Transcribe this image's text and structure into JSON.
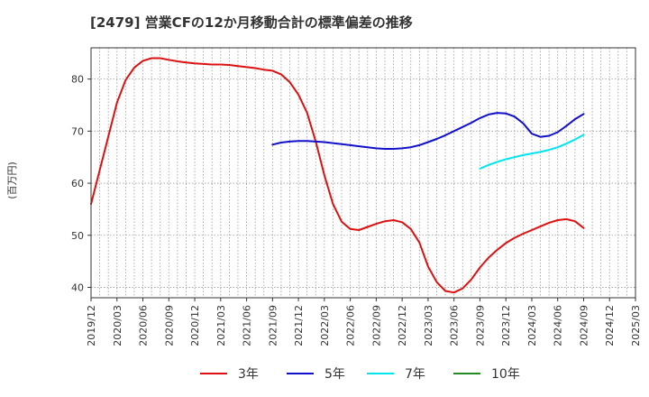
{
  "chart_data": {
    "type": "line",
    "title": "[2479]  営業CFの12か月移動合計の標準偏差の推移",
    "ylabel": "(百万円)",
    "xlabel": "",
    "ylim": [
      38,
      86
    ],
    "yticks": [
      40,
      50,
      60,
      70,
      80
    ],
    "x_tick_labels": [
      "2019/12",
      "2020/03",
      "2020/06",
      "2020/09",
      "2020/12",
      "2021/03",
      "2021/06",
      "2021/09",
      "2021/12",
      "2022/03",
      "2022/06",
      "2022/09",
      "2022/12",
      "2023/03",
      "2023/06",
      "2023/09",
      "2023/12",
      "2024/03",
      "2024/06",
      "2024/09",
      "2024/12",
      "2025/03"
    ],
    "grid": true,
    "legend_position": "bottom",
    "series": [
      {
        "name": "3年",
        "color": "#dd1111",
        "x": [
          "2019/12",
          "2020/01",
          "2020/02",
          "2020/03",
          "2020/04",
          "2020/05",
          "2020/06",
          "2020/07",
          "2020/08",
          "2020/09",
          "2020/10",
          "2020/11",
          "2020/12",
          "2021/01",
          "2021/02",
          "2021/03",
          "2021/04",
          "2021/05",
          "2021/06",
          "2021/07",
          "2021/08",
          "2021/09",
          "2021/10",
          "2021/11",
          "2021/12",
          "2022/01",
          "2022/02",
          "2022/03",
          "2022/04",
          "2022/05",
          "2022/06",
          "2022/07",
          "2022/08",
          "2022/09",
          "2022/10",
          "2022/11",
          "2022/12",
          "2023/01",
          "2023/02",
          "2023/03",
          "2023/04",
          "2023/05",
          "2023/06",
          "2023/07",
          "2023/08",
          "2023/09",
          "2023/10",
          "2023/11",
          "2023/12",
          "2024/01",
          "2024/02",
          "2024/03",
          "2024/04",
          "2024/05",
          "2024/06",
          "2024/07",
          "2024/08",
          "2024/09"
        ],
        "values": [
          56.0,
          62.5,
          69.0,
          75.5,
          79.8,
          82.2,
          83.5,
          84.0,
          84.0,
          83.7,
          83.4,
          83.2,
          83.0,
          82.9,
          82.8,
          82.8,
          82.7,
          82.5,
          82.3,
          82.1,
          81.8,
          81.6,
          80.9,
          79.4,
          77.0,
          73.5,
          68.0,
          61.5,
          56.0,
          52.6,
          51.2,
          51.0,
          51.6,
          52.2,
          52.7,
          52.9,
          52.5,
          51.2,
          48.6,
          44.0,
          41.0,
          39.3,
          39.0,
          39.8,
          41.5,
          43.8,
          45.7,
          47.2,
          48.5,
          49.5,
          50.3,
          51.0,
          51.7,
          52.4,
          52.9,
          53.1,
          52.7,
          51.4
        ]
      },
      {
        "name": "5年",
        "color": "#1111cc",
        "x": [
          "2021/09",
          "2021/10",
          "2021/11",
          "2021/12",
          "2022/01",
          "2022/02",
          "2022/03",
          "2022/04",
          "2022/05",
          "2022/06",
          "2022/07",
          "2022/08",
          "2022/09",
          "2022/10",
          "2022/11",
          "2022/12",
          "2023/01",
          "2023/02",
          "2023/03",
          "2023/04",
          "2023/05",
          "2023/06",
          "2023/07",
          "2023/08",
          "2023/09",
          "2023/10",
          "2023/11",
          "2023/12",
          "2024/01",
          "2024/02",
          "2024/03",
          "2024/04",
          "2024/05",
          "2024/06",
          "2024/07",
          "2024/08",
          "2024/09"
        ],
        "values": [
          67.4,
          67.8,
          68.0,
          68.1,
          68.1,
          68.0,
          67.9,
          67.7,
          67.5,
          67.3,
          67.1,
          66.9,
          66.7,
          66.6,
          66.6,
          66.7,
          66.9,
          67.3,
          67.9,
          68.5,
          69.2,
          70.0,
          70.8,
          71.6,
          72.5,
          73.2,
          73.5,
          73.4,
          72.8,
          71.5,
          69.5,
          68.9,
          69.1,
          69.8,
          71.0,
          72.3,
          73.3
        ]
      },
      {
        "name": "7年",
        "color": "#00e5ee",
        "x": [
          "2023/09",
          "2023/10",
          "2023/11",
          "2023/12",
          "2024/01",
          "2024/02",
          "2024/03",
          "2024/04",
          "2024/05",
          "2024/06",
          "2024/07",
          "2024/08",
          "2024/09"
        ],
        "values": [
          62.8,
          63.5,
          64.1,
          64.6,
          65.0,
          65.4,
          65.7,
          66.0,
          66.4,
          66.9,
          67.6,
          68.4,
          69.3
        ]
      },
      {
        "name": "10年",
        "color": "#228b22",
        "x": [],
        "values": []
      }
    ]
  }
}
